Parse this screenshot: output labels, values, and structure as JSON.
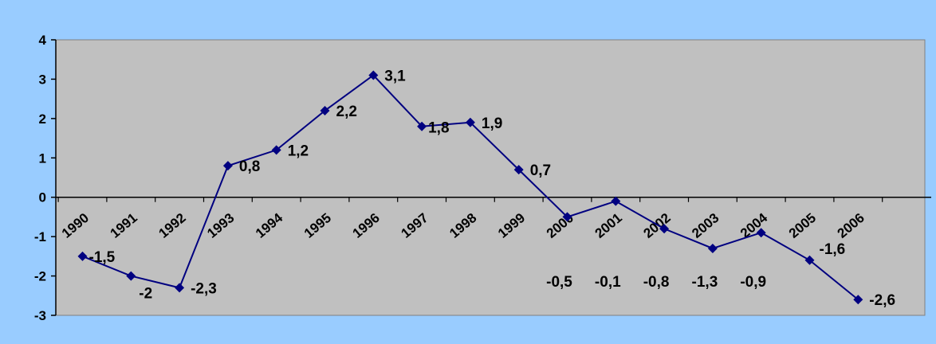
{
  "chart_data": {
    "type": "line",
    "title": "",
    "xlabel": "",
    "ylabel": "",
    "x": [
      "1990",
      "1991",
      "1992",
      "1993",
      "1994",
      "1995",
      "1996",
      "1997",
      "1998",
      "1999",
      "2000",
      "2001",
      "2002",
      "2003",
      "2004",
      "2005",
      "2006"
    ],
    "series": [
      {
        "values": [
          -1.5,
          -2,
          -2.3,
          0.8,
          1.2,
          2.2,
          3.1,
          1.8,
          1.9,
          0.7,
          -0.5,
          -0.1,
          -0.8,
          -1.3,
          -0.9,
          -1.6,
          -2.6
        ],
        "labels": [
          "-1,5",
          "-2",
          "-2,3",
          "0,8",
          "1,2",
          "2,2",
          "3,1",
          "1,8",
          "1,9",
          "0,7",
          "-0,5",
          "-0,1",
          "-0,8",
          "-1,3",
          "-0,9",
          "-1,6",
          "-2,6"
        ]
      }
    ],
    "yticks": [
      "-3",
      "-2",
      "-1",
      "0",
      "1",
      "2",
      "3",
      "4"
    ],
    "ylim": [
      -3,
      4
    ],
    "grid": false,
    "legend": "none",
    "colors": {
      "background": "#99ccff",
      "plot_area": "#c0c0c0",
      "line": "#000080",
      "axis": "#000000"
    }
  }
}
